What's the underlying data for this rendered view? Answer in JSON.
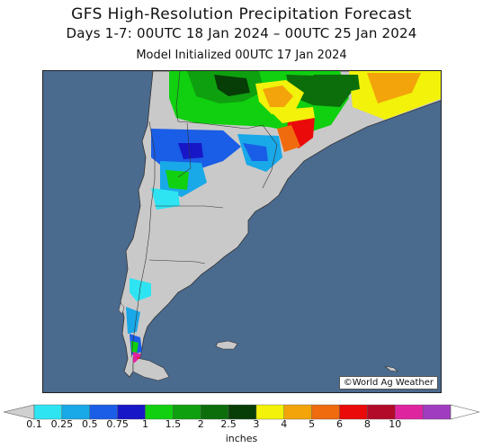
{
  "header": {
    "title": "GFS High-Resolution Precipitation Forecast",
    "period": "Days 1-7: 00UTC 18 Jan 2024 – 00UTC 25 Jan 2024",
    "initialized": "Model Initialized 00UTC 17 Jan 2024"
  },
  "map": {
    "credit": "©World Ag Weather",
    "ocean_color": "#4a6a8e",
    "land_color": "#c9c9c9"
  },
  "legend": {
    "units": "inches",
    "ticks": [
      "0.1",
      "0.25",
      "0.5",
      "0.75",
      "1",
      "1.5",
      "2",
      "2.5",
      "3",
      "4",
      "5",
      "6",
      "8",
      "10"
    ],
    "colors": [
      "#2fe4f2",
      "#19a8e8",
      "#1a5de6",
      "#1717c8",
      "#10d010",
      "#0fa00f",
      "#0b6e0b",
      "#073e07",
      "#f2f20a",
      "#f2a40a",
      "#ef6b0e",
      "#ea0a0a",
      "#b40a2a",
      "#df24a0",
      "#a03cc0"
    ]
  }
}
